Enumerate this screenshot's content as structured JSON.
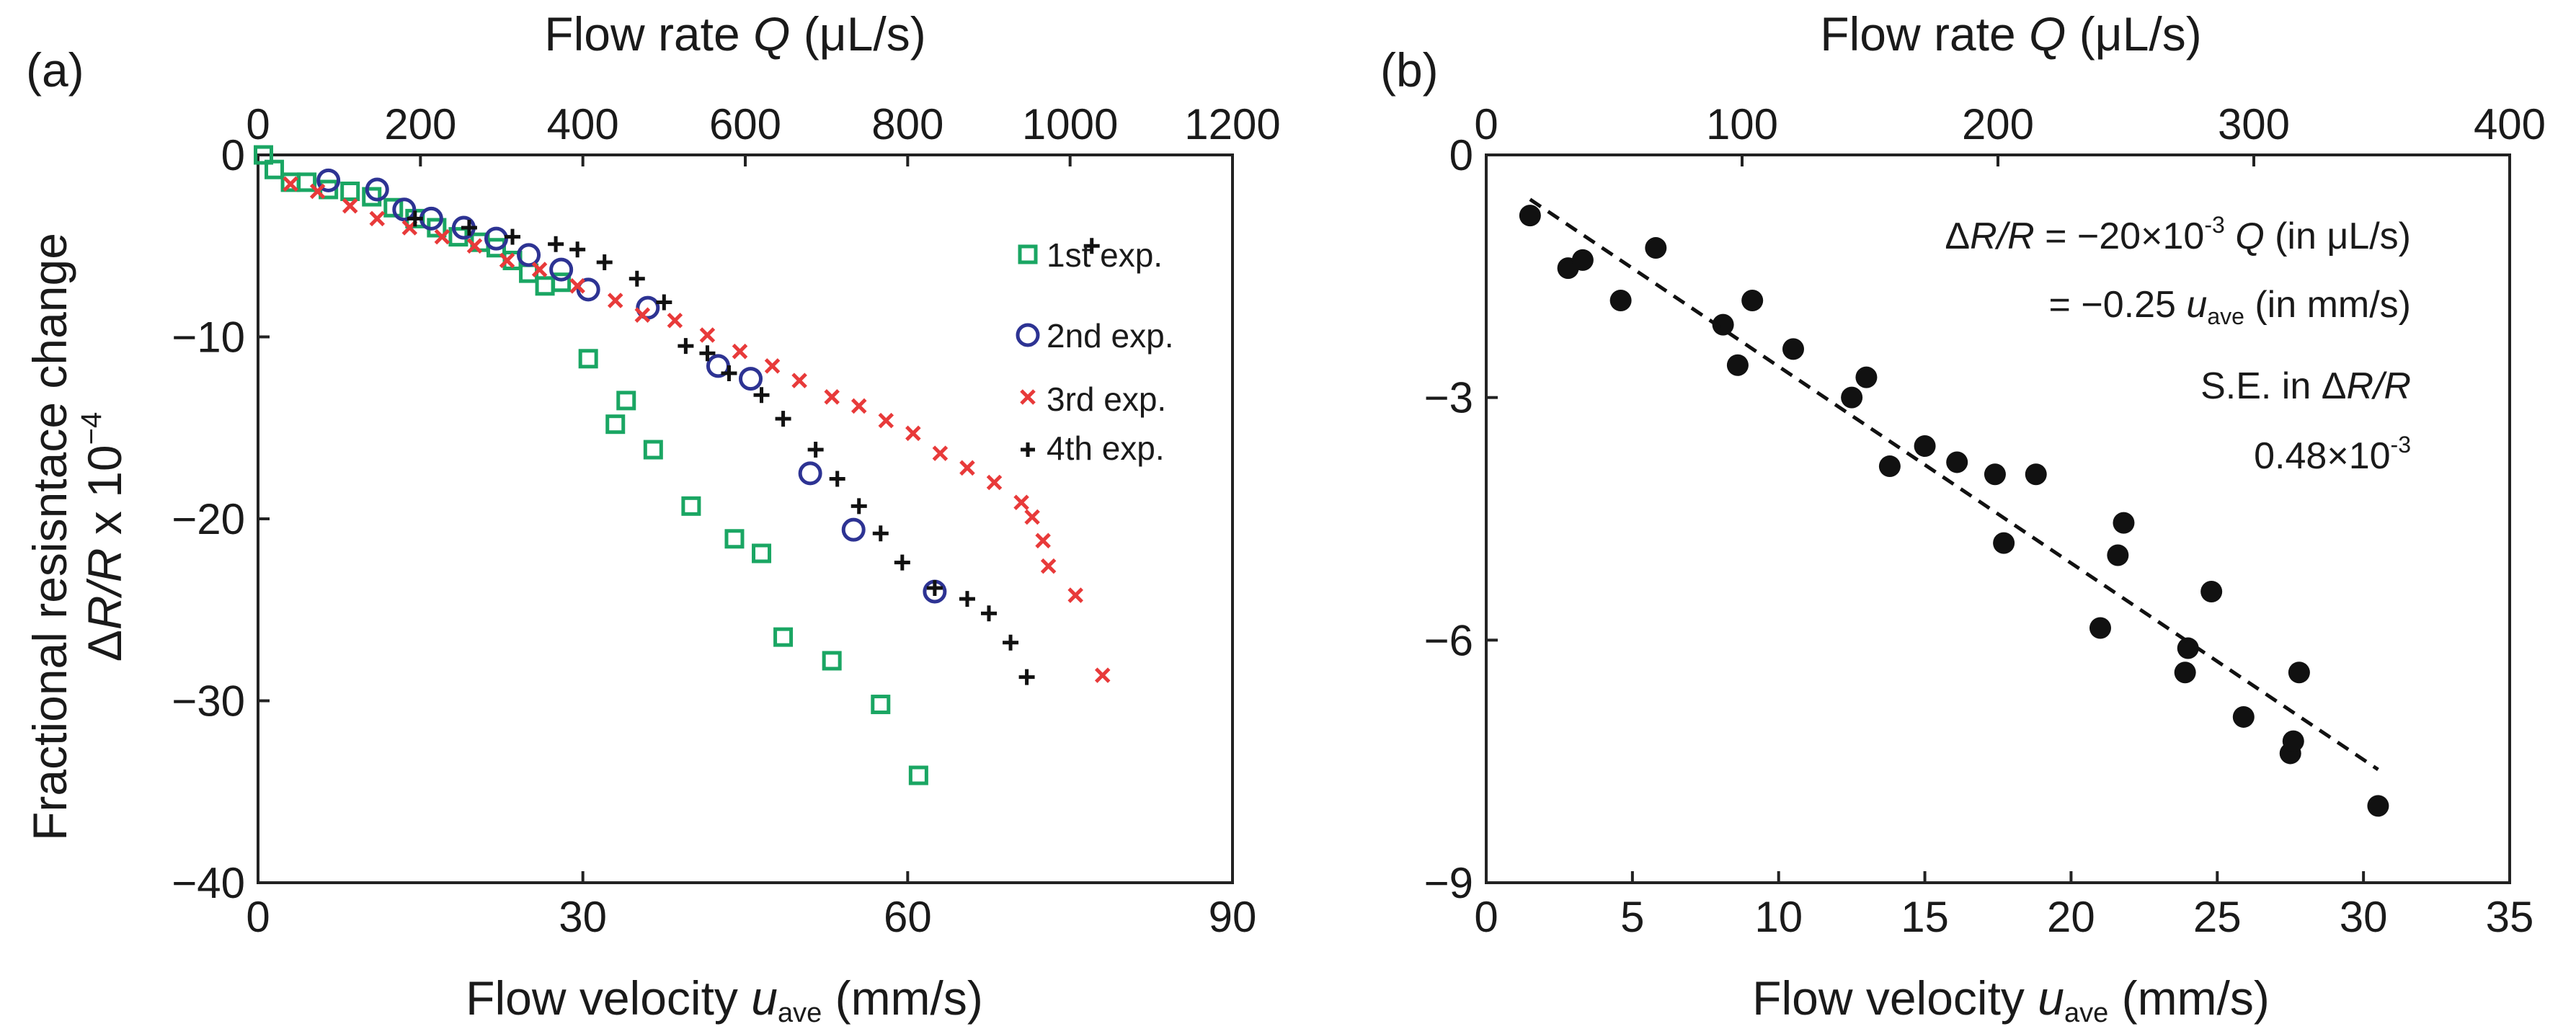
{
  "chart_data": [
    {
      "type": "scatter",
      "panel_label": "(a)",
      "top_axis": {
        "label_prefix": "Flow rate ",
        "label_var": "Q",
        "label_suffix": " (μL/s)",
        "range": [
          0,
          1200
        ],
        "ticks": [
          0,
          200,
          400,
          600,
          800,
          1000,
          1200
        ]
      },
      "xaxis": {
        "label_prefix": "Flow velocity ",
        "label_var": "u",
        "label_sub": "ave",
        "label_suffix": " (mm/s)",
        "range": [
          0,
          90
        ],
        "ticks": [
          0,
          30,
          60,
          90
        ]
      },
      "yaxis": {
        "label_line1": "Fractional resisntace change",
        "label_line2_delta": "Δ",
        "label_line2_var": "R/R",
        "label_line2_rest": " x 10",
        "label_line2_exp": "−4",
        "range": [
          -40,
          0
        ],
        "ticks": [
          0,
          -10,
          -20,
          -30,
          -40
        ],
        "tick_labels": [
          "0",
          "−10",
          "−20",
          "−30",
          "−40"
        ]
      },
      "legend_position": "top-right",
      "series": [
        {
          "name": "1st exp.",
          "marker": "square",
          "color": "#1aa663",
          "x": [
            0.5,
            1.5,
            3,
            4.5,
            6.5,
            8.5,
            10.5,
            12.5,
            14.5,
            16.5,
            18.5,
            20.5,
            22,
            23.5,
            25,
            26.5,
            28,
            30.5,
            33,
            34,
            36.5,
            40,
            44,
            46.5,
            48.5,
            53,
            57.5,
            61
          ],
          "y": [
            0,
            -0.8,
            -1.5,
            -1.5,
            -1.9,
            -2,
            -2.3,
            -2.9,
            -3.5,
            -4,
            -4.5,
            -4.8,
            -5.1,
            -5.8,
            -6.5,
            -7.2,
            -7,
            -11.2,
            -14.8,
            -13.5,
            -16.2,
            -19.3,
            -21.1,
            -21.9,
            -26.5,
            -27.8,
            -30.2,
            -34.1
          ]
        },
        {
          "name": "2nd exp.",
          "marker": "circle",
          "color": "#2d3393",
          "x": [
            6.5,
            11,
            13.5,
            16,
            19,
            22,
            25,
            28,
            30.5,
            36,
            42.5,
            45.5,
            51,
            55,
            62.5
          ],
          "y": [
            -1.4,
            -1.9,
            -3,
            -3.5,
            -4,
            -4.6,
            -5.5,
            -6.3,
            -7.4,
            -8.4,
            -11.6,
            -12.3,
            -17.5,
            -20.6,
            -24
          ]
        },
        {
          "name": "3rd exp.",
          "marker": "x",
          "color": "#e83a3a",
          "x": [
            3,
            5.5,
            8.5,
            11,
            14,
            17,
            20,
            23,
            26,
            29.5,
            33,
            35.5,
            38.5,
            41.5,
            44.5,
            47.5,
            50,
            53,
            55.5,
            58,
            60.5,
            63,
            65.5,
            68,
            70.5,
            71.5,
            72.5,
            73,
            75.5,
            78
          ],
          "y": [
            -1.6,
            -2,
            -2.8,
            -3.5,
            -4,
            -4.5,
            -5,
            -5.8,
            -6.3,
            -7.2,
            -8,
            -8.8,
            -9.1,
            -9.9,
            -10.8,
            -11.6,
            -12.4,
            -13.3,
            -13.8,
            -14.6,
            -15.3,
            -16.4,
            -17.2,
            -18,
            -19.1,
            -19.9,
            -21.2,
            -22.6,
            -24.2,
            -28.6
          ]
        },
        {
          "name": "4th exp.",
          "marker": "plus",
          "color": "#111111",
          "x": [
            14.5,
            19.5,
            23.5,
            27.5,
            29.5,
            32,
            35,
            37.5,
            39.5,
            41.5,
            43.5,
            46.5,
            48.5,
            51.5,
            53.5,
            55.5,
            57.5,
            59.5,
            62.5,
            65.5,
            67.5,
            69.5,
            71,
            77
          ],
          "y": [
            -3.5,
            -4,
            -4.5,
            -4.9,
            -5.2,
            -5.9,
            -6.8,
            -8.1,
            -10.5,
            -10.9,
            -12,
            -13.2,
            -14.5,
            -16.2,
            -17.8,
            -19.3,
            -20.8,
            -22.4,
            -23.8,
            -24.4,
            -25.2,
            -26.8,
            -28.7,
            -5
          ]
        }
      ]
    },
    {
      "type": "scatter",
      "panel_label": "(b)",
      "top_axis": {
        "label_prefix": "Flow rate ",
        "label_var": "Q",
        "label_suffix": " (μL/s)",
        "range": [
          0,
          400
        ],
        "ticks": [
          0,
          100,
          200,
          300,
          400
        ]
      },
      "xaxis": {
        "label_prefix": "Flow velocity ",
        "label_var": "u",
        "label_sub": "ave",
        "label_suffix": " (mm/s)",
        "range": [
          0,
          35
        ],
        "ticks": [
          0,
          5,
          10,
          15,
          20,
          25,
          30,
          35
        ]
      },
      "yaxis": {
        "range": [
          -9,
          0
        ],
        "ticks": [
          0,
          -3,
          -6,
          -9
        ],
        "tick_labels": [
          "0",
          "−3",
          "−6",
          "−9"
        ]
      },
      "series": [
        {
          "name": "data",
          "marker": "filled-circle",
          "color": "#111111",
          "x": [
            1.5,
            2.8,
            3.3,
            4.6,
            5.8,
            8.1,
            8.6,
            9.1,
            10.5,
            12.5,
            13,
            13.8,
            15,
            16.1,
            17.4,
            17.7,
            18.8,
            21,
            21.6,
            21.8,
            24.8,
            24,
            23.9,
            25.9,
            27.5,
            27.8,
            27.6,
            30.5
          ],
          "y": [
            -0.75,
            -1.4,
            -1.3,
            -1.8,
            -1.15,
            -2.1,
            -2.6,
            -1.8,
            -2.4,
            -3,
            -2.75,
            -3.85,
            -3.6,
            -3.8,
            -3.95,
            -4.8,
            -3.95,
            -5.85,
            -4.95,
            -4.55,
            -5.4,
            -6.1,
            -6.4,
            -6.95,
            -7.4,
            -6.4,
            -7.25,
            -8.05
          ]
        }
      ],
      "fit_line": {
        "style": "dashed",
        "x": [
          1.5,
          30.5
        ],
        "y": [
          -0.55,
          -7.6
        ]
      },
      "annotations": {
        "eq1_prefix": "Δ",
        "eq1_var": "R/R",
        "eq1_mid": " = −20×10",
        "eq1_exp": "-3",
        "eq1_var2": " Q",
        "eq1_suffix": " (in μL/s)",
        "eq2_prefix": "= −0.25 ",
        "eq2_var": "u",
        "eq2_sub": "ave",
        "eq2_suffix": "  (in mm/s)",
        "se_prefix": "S.E. in Δ",
        "se_var": "R/R",
        "se_value_base": "0.48×10",
        "se_value_exp": "-3"
      }
    }
  ]
}
